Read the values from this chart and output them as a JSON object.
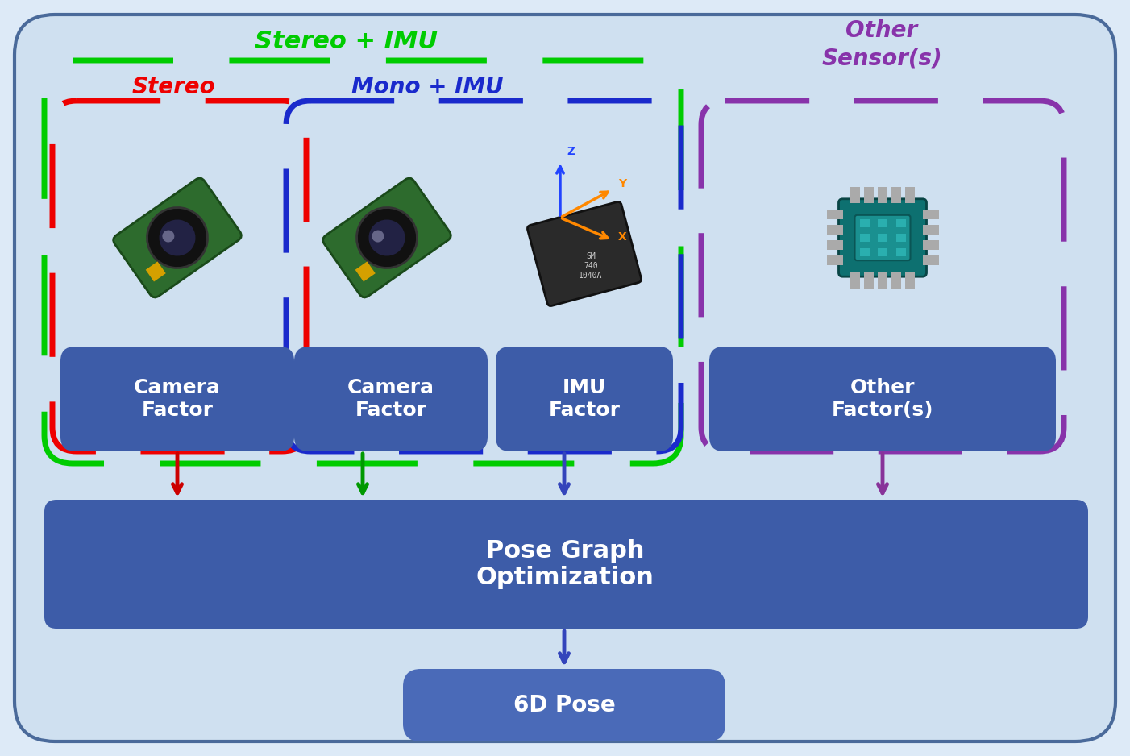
{
  "bg_outer": "#cfe0f0",
  "bg_light": "#ddeaf7",
  "outer_border": "#4a6a9a",
  "box_blue": "#3d5ca8",
  "box_blue2": "#4a6ab8",
  "green_dash": "#00cc00",
  "red_dash": "#ee0000",
  "blue_dash": "#1a2acc",
  "purple_dash": "#8833aa",
  "arrow_red": "#cc0000",
  "arrow_green": "#009900",
  "arrow_blue": "#3344bb",
  "arrow_purple": "#883399",
  "white": "#ffffff",
  "green_text": "#00cc00",
  "red_text": "#ee0000",
  "darkblue_text": "#1a2acc",
  "purple_text": "#8833aa",
  "label_stereo_imu": "Stereo + IMU",
  "label_stereo": "Stereo",
  "label_mono_imu": "Mono + IMU",
  "label_other_s": "Other\nSensor(s)",
  "label_cf1": "Camera\nFactor",
  "label_cf2": "Camera\nFactor",
  "label_imu_f": "IMU\nFactor",
  "label_other_f": "Other\nFactor(s)",
  "label_pgo": "Pose Graph\nOptimization",
  "label_pose": "6D Pose",
  "figw": 14.02,
  "figh": 9.38,
  "dpi": 100
}
